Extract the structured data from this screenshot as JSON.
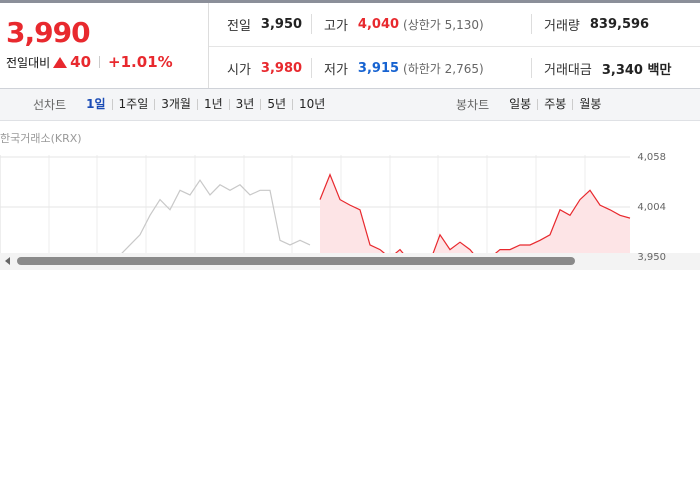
{
  "price": {
    "current": "3,990",
    "change_label": "전일대비",
    "change": "40",
    "change_rate": "+1.01%"
  },
  "stats": {
    "rows": [
      [
        {
          "label": "전일",
          "value": "3,950"
        },
        {
          "label": "고가",
          "value": "4,040",
          "note": "(상한가 5,130)"
        },
        {
          "label": "거래량",
          "value": "839,596"
        }
      ],
      [
        {
          "label": "시가",
          "value": "3,980"
        },
        {
          "label": "저가",
          "value": "3,915",
          "note": "(하한가 2,765)"
        },
        {
          "label": "거래대금",
          "value": "3,340 백만"
        }
      ]
    ]
  },
  "tabs": {
    "line_label": "선차트",
    "line_options": [
      "1일",
      "1주일",
      "3개월",
      "1년",
      "3년",
      "5년",
      "10년"
    ],
    "selected": 0,
    "candle_label": "봉차트",
    "candle_options": [
      "일봉",
      "주봉",
      "월봉"
    ]
  },
  "chart_data": {
    "type": "line",
    "source": "한국거래소(KRX)",
    "series": [
      {
        "color": "#c8c8c8",
        "values": [
          null,
          null,
          null,
          null,
          null,
          null,
          null,
          null,
          null,
          null,
          null,
          null,
          3952,
          3963,
          3974,
          3995,
          4012,
          4001,
          4022,
          4017,
          4033,
          4017,
          4028,
          4022,
          4028,
          4017,
          4022,
          4022,
          3968,
          3963,
          3968,
          3963,
          null,
          null,
          null,
          null,
          null,
          null,
          null,
          null,
          null,
          null,
          null,
          null,
          null,
          null,
          null,
          null,
          null,
          null,
          null,
          null,
          null,
          null,
          null,
          null,
          null,
          null,
          null,
          null,
          null,
          null,
          null,
          null
        ]
      },
      {
        "color": "#e8292e",
        "fill": "#fde4e6",
        "values": [
          null,
          null,
          null,
          null,
          null,
          null,
          null,
          null,
          null,
          null,
          null,
          null,
          null,
          null,
          null,
          null,
          null,
          null,
          null,
          null,
          null,
          null,
          null,
          null,
          null,
          null,
          null,
          null,
          null,
          null,
          null,
          null,
          4012,
          4039,
          4012,
          4006,
          4001,
          3963,
          3958,
          3949,
          3958,
          3945,
          3941,
          3945,
          3974,
          3958,
          3966,
          3958,
          3945,
          3949,
          3958,
          3958,
          3963,
          3963,
          3968,
          3974,
          4001,
          3995,
          4012,
          4022,
          4006,
          4001,
          3995,
          3992
        ]
      }
    ],
    "ylim": [
      3896,
      4085
    ],
    "yticks": [
      {
        "value": 4058,
        "label": "4,058"
      },
      {
        "value": 4004,
        "label": "4,004"
      },
      {
        "value": 3950,
        "label": "3,950"
      }
    ]
  }
}
